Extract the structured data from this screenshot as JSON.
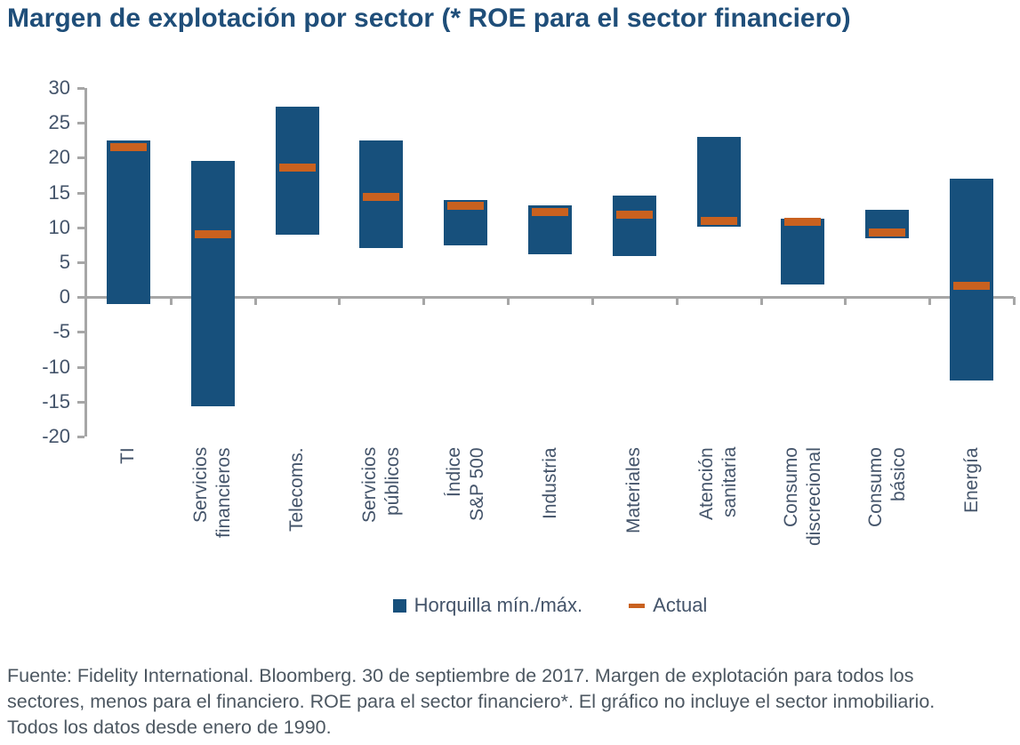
{
  "title": "Margen de explotación por sector (* ROE para el sector financiero)",
  "chart_data": {
    "type": "bar",
    "subtype": "floating-range-bar-with-marker",
    "categories": [
      "TI",
      "Servicios\nfinancieros",
      "Telecoms.",
      "Servicios\npúblicos",
      "Índice\nS&P 500",
      "Industria",
      "Materiales",
      "Atención\nsanitaria",
      "Consumo\ndiscrecional",
      "Consumo\nbásico",
      "Energía"
    ],
    "series": [
      {
        "name": "Horquilla mín./máx.",
        "type": "range",
        "min": [
          -1.0,
          -15.7,
          9.0,
          7.1,
          7.4,
          6.1,
          5.9,
          10.1,
          1.8,
          8.5,
          -12.0
        ],
        "max": [
          22.5,
          19.6,
          27.3,
          22.5,
          13.9,
          13.2,
          14.6,
          23.0,
          11.2,
          12.5,
          17.0
        ]
      },
      {
        "name": "Actual",
        "type": "marker",
        "values": [
          21.5,
          9.0,
          18.6,
          14.4,
          13.1,
          12.2,
          11.8,
          10.9,
          10.8,
          9.3,
          1.6
        ]
      }
    ],
    "ylim": [
      -20,
      30
    ],
    "ytick_step": 5,
    "xlabel": "",
    "ylabel": "",
    "grid": false,
    "legend_position": "bottom"
  },
  "legend": {
    "items": [
      {
        "label": "Horquilla mín./máx.",
        "swatch": "square",
        "color": "#17507C"
      },
      {
        "label": "Actual",
        "swatch": "dash",
        "color": "#C9611F"
      }
    ]
  },
  "footer": {
    "text": "Fuente: Fidelity International. Bloomberg. 30 de septiembre de 2017. Margen de explotación para todos los\nsectores, menos para el financiero. ROE para el sector financiero*. El gráfico no incluye el sector inmobiliario.\nTodos los datos desde enero de 1990."
  },
  "colors": {
    "bar": "#17507C",
    "actual_marker": "#C9611F",
    "title": "#1F4E79",
    "axis_text": "#44546A",
    "axis_line": "#A6A6A6",
    "footer_text": "#4C5761"
  }
}
